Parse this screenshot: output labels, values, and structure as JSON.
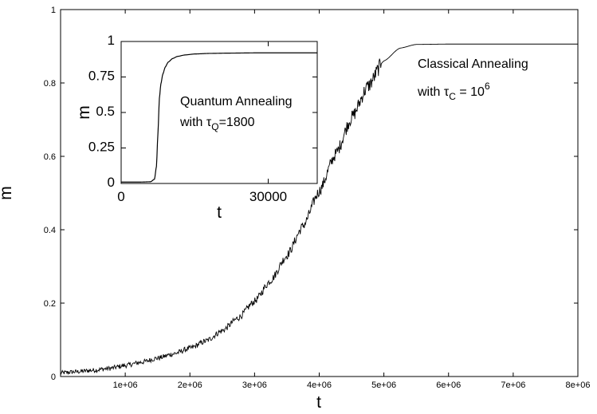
{
  "chart_data": [
    {
      "id": "main",
      "type": "line",
      "xlabel": "t",
      "ylabel": "m",
      "xlim": [
        0,
        8000000
      ],
      "ylim": [
        0,
        1
      ],
      "xticks": [
        1000000,
        2000000,
        3000000,
        4000000,
        5000000,
        6000000,
        7000000,
        8000000
      ],
      "xtick_labels": [
        "1e+06",
        "2e+06",
        "3e+06",
        "4e+06",
        "5e+06",
        "6e+06",
        "7e+06",
        "8e+06"
      ],
      "yticks": [
        0,
        0.2,
        0.4,
        0.6,
        0.8,
        1
      ],
      "ytick_labels": [
        "0",
        "0.2",
        "0.4",
        "0.6",
        "0.8",
        "1"
      ],
      "grid": false,
      "annotation": {
        "line1": "Classical Annealing",
        "line2_prefix": "with ",
        "symbol": "τ",
        "subscript": "C",
        "middle": " = 10",
        "superscript": "6"
      },
      "series": [
        {
          "x": [
            0,
            250000,
            500000,
            750000,
            1000000,
            1250000,
            1500000,
            1750000,
            2000000,
            2250000,
            2500000,
            2750000,
            3000000,
            3250000,
            3500000,
            3750000,
            4000000,
            4250000,
            4500000,
            4750000,
            5000000,
            5250000,
            5500000,
            6000000,
            7000000,
            8000000
          ],
          "y": [
            0.01,
            0.013,
            0.017,
            0.022,
            0.03,
            0.039,
            0.05,
            0.062,
            0.077,
            0.097,
            0.125,
            0.16,
            0.205,
            0.262,
            0.33,
            0.41,
            0.505,
            0.605,
            0.705,
            0.79,
            0.86,
            0.895,
            0.905,
            0.906,
            0.906,
            0.906
          ],
          "noise": 0.006
        }
      ]
    },
    {
      "id": "inset",
      "type": "line",
      "xlabel": "t",
      "ylabel": "m",
      "xlim": [
        0,
        40000
      ],
      "ylim": [
        0,
        1
      ],
      "xticks": [
        0,
        30000
      ],
      "xtick_labels": [
        "0",
        "30000"
      ],
      "yticks": [
        0,
        0.25,
        0.5,
        0.75,
        1
      ],
      "ytick_labels": [
        "0",
        "0.25",
        "0.5",
        "0.75",
        "1"
      ],
      "grid": false,
      "annotation": {
        "line1": "Quantum Annealing",
        "line2_prefix": "with ",
        "symbol": "τ",
        "subscript": "Q",
        "middle": "=1800"
      },
      "series": [
        {
          "x": [
            0,
            4000,
            6000,
            6800,
            7200,
            7500,
            7800,
            8100,
            8500,
            9000,
            9600,
            10500,
            11500,
            13000,
            15000,
            18000,
            22000,
            28000,
            35000,
            40000
          ],
          "y": [
            0.01,
            0.01,
            0.012,
            0.03,
            0.12,
            0.35,
            0.6,
            0.7,
            0.77,
            0.82,
            0.855,
            0.88,
            0.895,
            0.905,
            0.912,
            0.916,
            0.918,
            0.92,
            0.92,
            0.92
          ]
        }
      ]
    }
  ]
}
